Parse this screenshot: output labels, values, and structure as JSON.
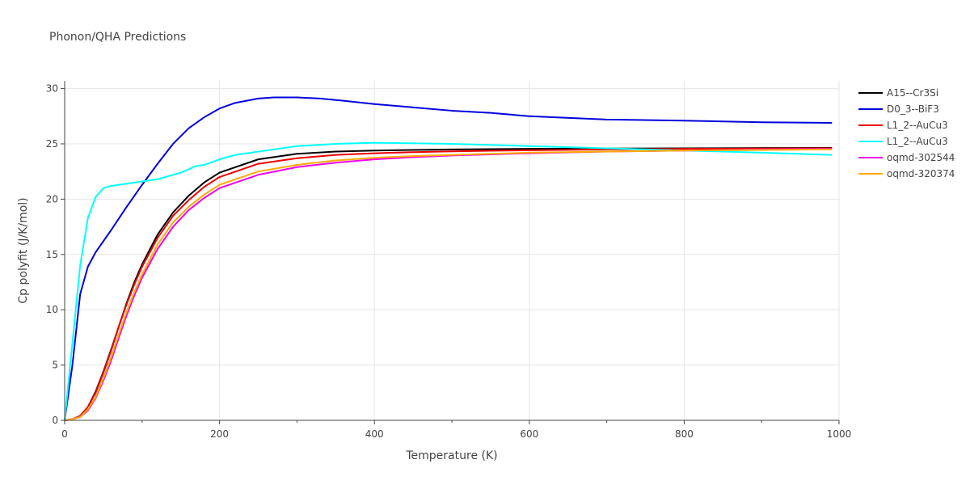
{
  "chart_data": {
    "type": "line",
    "title": "Phonon/QHA Predictions",
    "xlabel": "Temperature (K)",
    "ylabel": "Cp polyfit (J/K/mol)",
    "xlim": [
      0,
      1000
    ],
    "ylim": [
      0,
      30.7
    ],
    "xticks": [
      0,
      200,
      400,
      600,
      800,
      1000
    ],
    "yticks": [
      0,
      5,
      10,
      15,
      20,
      25,
      30
    ],
    "grid": true,
    "legend_position": "top-right",
    "series": [
      {
        "name": "A15--Cr3Si",
        "color": "#000000",
        "x": [
          0,
          10,
          20,
          30,
          40,
          50,
          60,
          70,
          80,
          90,
          100,
          120,
          140,
          160,
          180,
          200,
          250,
          300,
          350,
          400,
          450,
          500,
          550,
          600,
          700,
          800,
          900,
          990
        ],
        "y": [
          0,
          0.1,
          0.4,
          1.2,
          2.6,
          4.4,
          6.4,
          8.5,
          10.6,
          12.5,
          14.1,
          16.8,
          18.8,
          20.3,
          21.5,
          22.4,
          23.6,
          24.1,
          24.3,
          24.4,
          24.45,
          24.5,
          24.52,
          24.55,
          24.58,
          24.6,
          24.62,
          24.64
        ]
      },
      {
        "name": "D0_3--BiF3",
        "color": "#0000dd",
        "x": [
          0,
          10,
          20,
          30,
          40,
          50,
          60,
          80,
          100,
          120,
          140,
          160,
          180,
          200,
          220,
          250,
          270,
          300,
          330,
          360,
          400,
          450,
          500,
          550,
          600,
          700,
          800,
          900,
          990
        ],
        "y": [
          0,
          5,
          11.4,
          13.9,
          15.2,
          16.2,
          17.2,
          19.3,
          21.3,
          23.2,
          25.0,
          26.4,
          27.4,
          28.2,
          28.7,
          29.1,
          29.2,
          29.2,
          29.1,
          28.9,
          28.6,
          28.3,
          28.0,
          27.8,
          27.5,
          27.2,
          27.1,
          26.95,
          26.9
        ]
      },
      {
        "name": "L1_2--AuCu3",
        "color": "#ee0000",
        "x": [
          0,
          10,
          20,
          30,
          40,
          50,
          60,
          70,
          80,
          90,
          100,
          120,
          140,
          160,
          180,
          200,
          250,
          300,
          350,
          400,
          450,
          500,
          550,
          600,
          700,
          800,
          900,
          990
        ],
        "y": [
          0,
          0.1,
          0.4,
          1.2,
          2.5,
          4.3,
          6.3,
          8.5,
          10.5,
          12.3,
          13.9,
          16.5,
          18.5,
          19.9,
          21.1,
          22.0,
          23.2,
          23.7,
          24.0,
          24.15,
          24.25,
          24.32,
          24.38,
          24.42,
          24.5,
          24.55,
          24.58,
          24.6
        ]
      },
      {
        "name": "L1_2--AuCu3",
        "color": "#00ffff",
        "x": [
          0,
          10,
          20,
          30,
          40,
          50,
          60,
          70,
          80,
          90,
          100,
          120,
          150,
          170,
          180,
          200,
          220,
          250,
          300,
          350,
          400,
          450,
          500,
          600,
          700,
          800,
          900,
          990
        ],
        "y": [
          0,
          7,
          14,
          18.3,
          20.2,
          21.0,
          21.2,
          21.3,
          21.4,
          21.5,
          21.6,
          21.8,
          22.4,
          23.0,
          23.1,
          23.6,
          24.0,
          24.3,
          24.8,
          25.0,
          25.1,
          25.05,
          25.0,
          24.8,
          24.6,
          24.4,
          24.2,
          24.0
        ]
      },
      {
        "name": "oqmd-302544",
        "color": "#ee00ee",
        "x": [
          0,
          10,
          20,
          30,
          40,
          50,
          60,
          70,
          80,
          90,
          100,
          120,
          140,
          160,
          180,
          200,
          250,
          300,
          350,
          400,
          450,
          500,
          550,
          600,
          700,
          800,
          900,
          990
        ],
        "y": [
          0,
          0.1,
          0.3,
          0.9,
          2.0,
          3.6,
          5.4,
          7.5,
          9.5,
          11.3,
          12.9,
          15.5,
          17.5,
          19.0,
          20.1,
          21.0,
          22.2,
          22.9,
          23.3,
          23.6,
          23.8,
          23.95,
          24.05,
          24.15,
          24.3,
          24.4,
          24.5,
          24.55
        ]
      },
      {
        "name": "oqmd-320374",
        "color": "#ffaa00",
        "x": [
          0,
          10,
          20,
          30,
          40,
          50,
          60,
          70,
          80,
          90,
          100,
          120,
          140,
          160,
          180,
          200,
          250,
          300,
          350,
          400,
          450,
          500,
          550,
          600,
          700,
          800,
          900,
          990
        ],
        "y": [
          0,
          0.1,
          0.3,
          1.0,
          2.1,
          3.8,
          5.7,
          7.8,
          9.8,
          11.6,
          13.2,
          15.9,
          17.9,
          19.3,
          20.4,
          21.3,
          22.5,
          23.1,
          23.5,
          23.75,
          23.9,
          24.0,
          24.1,
          24.2,
          24.3,
          24.4,
          24.45,
          24.5
        ]
      }
    ]
  }
}
